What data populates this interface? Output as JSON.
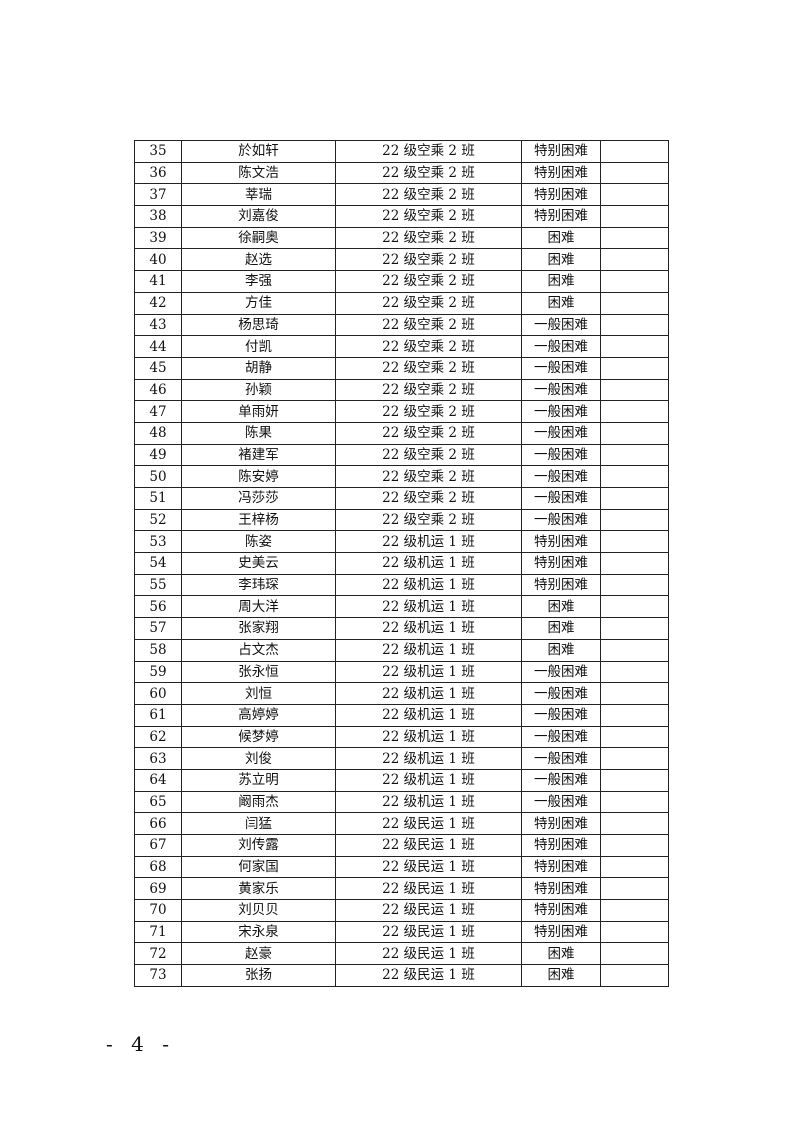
{
  "rows": [
    {
      "no": "35",
      "name": "於如轩",
      "class": "22 级空乘 2 班",
      "level": "特别困难",
      "note": ""
    },
    {
      "no": "36",
      "name": "陈文浩",
      "class": "22 级空乘 2 班",
      "level": "特别困难",
      "note": ""
    },
    {
      "no": "37",
      "name": "莘瑞",
      "class": "22 级空乘 2 班",
      "level": "特别困难",
      "note": ""
    },
    {
      "no": "38",
      "name": "刘嘉俊",
      "class": "22 级空乘 2 班",
      "level": "特别困难",
      "note": ""
    },
    {
      "no": "39",
      "name": "徐嗣奥",
      "class": "22 级空乘 2 班",
      "level": "困难",
      "note": ""
    },
    {
      "no": "40",
      "name": "赵选",
      "class": "22 级空乘 2 班",
      "level": "困难",
      "note": ""
    },
    {
      "no": "41",
      "name": "李强",
      "class": "22 级空乘 2 班",
      "level": "困难",
      "note": ""
    },
    {
      "no": "42",
      "name": "方佳",
      "class": "22 级空乘 2 班",
      "level": "困难",
      "note": ""
    },
    {
      "no": "43",
      "name": "杨思琦",
      "class": "22 级空乘 2 班",
      "level": "一般困难",
      "note": ""
    },
    {
      "no": "44",
      "name": "付凯",
      "class": "22 级空乘 2 班",
      "level": "一般困难",
      "note": ""
    },
    {
      "no": "45",
      "name": "胡静",
      "class": "22 级空乘 2 班",
      "level": "一般困难",
      "note": ""
    },
    {
      "no": "46",
      "name": "孙颖",
      "class": "22 级空乘 2 班",
      "level": "一般困难",
      "note": ""
    },
    {
      "no": "47",
      "name": "单雨妍",
      "class": "22 级空乘 2 班",
      "level": "一般困难",
      "note": ""
    },
    {
      "no": "48",
      "name": "陈果",
      "class": "22 级空乘 2 班",
      "level": "一般困难",
      "note": ""
    },
    {
      "no": "49",
      "name": "褚建军",
      "class": "22 级空乘 2 班",
      "level": "一般困难",
      "note": ""
    },
    {
      "no": "50",
      "name": "陈安婷",
      "class": "22 级空乘 2 班",
      "level": "一般困难",
      "note": ""
    },
    {
      "no": "51",
      "name": "冯莎莎",
      "class": "22 级空乘 2 班",
      "level": "一般困难",
      "note": ""
    },
    {
      "no": "52",
      "name": "王梓杨",
      "class": "22 级空乘 2 班",
      "level": "一般困难",
      "note": ""
    },
    {
      "no": "53",
      "name": "陈姿",
      "class": "22 级机运 1 班",
      "level": "特别困难",
      "note": ""
    },
    {
      "no": "54",
      "name": "史美云",
      "class": "22 级机运 1 班",
      "level": "特别困难",
      "note": ""
    },
    {
      "no": "55",
      "name": "李玮琛",
      "class": "22 级机运 1 班",
      "level": "特别困难",
      "note": ""
    },
    {
      "no": "56",
      "name": "周大洋",
      "class": "22 级机运 1 班",
      "level": "困难",
      "note": ""
    },
    {
      "no": "57",
      "name": "张家翔",
      "class": "22 级机运 1 班",
      "level": "困难",
      "note": ""
    },
    {
      "no": "58",
      "name": "占文杰",
      "class": "22 级机运 1 班",
      "level": "困难",
      "note": ""
    },
    {
      "no": "59",
      "name": "张永恒",
      "class": "22 级机运 1 班",
      "level": "一般困难",
      "note": ""
    },
    {
      "no": "60",
      "name": "刘恒",
      "class": "22 级机运 1 班",
      "level": "一般困难",
      "note": ""
    },
    {
      "no": "61",
      "name": "高婷婷",
      "class": "22 级机运 1 班",
      "level": "一般困难",
      "note": ""
    },
    {
      "no": "62",
      "name": "候梦婷",
      "class": "22 级机运 1 班",
      "level": "一般困难",
      "note": ""
    },
    {
      "no": "63",
      "name": "刘俊",
      "class": "22 级机运 1 班",
      "level": "一般困难",
      "note": ""
    },
    {
      "no": "64",
      "name": "苏立明",
      "class": "22 级机运 1 班",
      "level": "一般困难",
      "note": ""
    },
    {
      "no": "65",
      "name": "阚雨杰",
      "class": "22 级机运 1 班",
      "level": "一般困难",
      "note": ""
    },
    {
      "no": "66",
      "name": "闫猛",
      "class": "22 级民运 1 班",
      "level": "特别困难",
      "note": ""
    },
    {
      "no": "67",
      "name": "刘传露",
      "class": "22 级民运 1 班",
      "level": "特别困难",
      "note": ""
    },
    {
      "no": "68",
      "name": "何家国",
      "class": "22 级民运 1 班",
      "level": "特别困难",
      "note": ""
    },
    {
      "no": "69",
      "name": "黄家乐",
      "class": "22 级民运 1 班",
      "level": "特别困难",
      "note": ""
    },
    {
      "no": "70",
      "name": "刘贝贝",
      "class": "22 级民运 1 班",
      "level": "特别困难",
      "note": ""
    },
    {
      "no": "71",
      "name": "宋永泉",
      "class": "22 级民运 1 班",
      "level": "特别困难",
      "note": ""
    },
    {
      "no": "72",
      "name": "赵豪",
      "class": "22 级民运 1 班",
      "level": "困难",
      "note": ""
    },
    {
      "no": "73",
      "name": "张扬",
      "class": "22 级民运 1 班",
      "level": "困难",
      "note": ""
    }
  ],
  "page_number": "- 4 -"
}
